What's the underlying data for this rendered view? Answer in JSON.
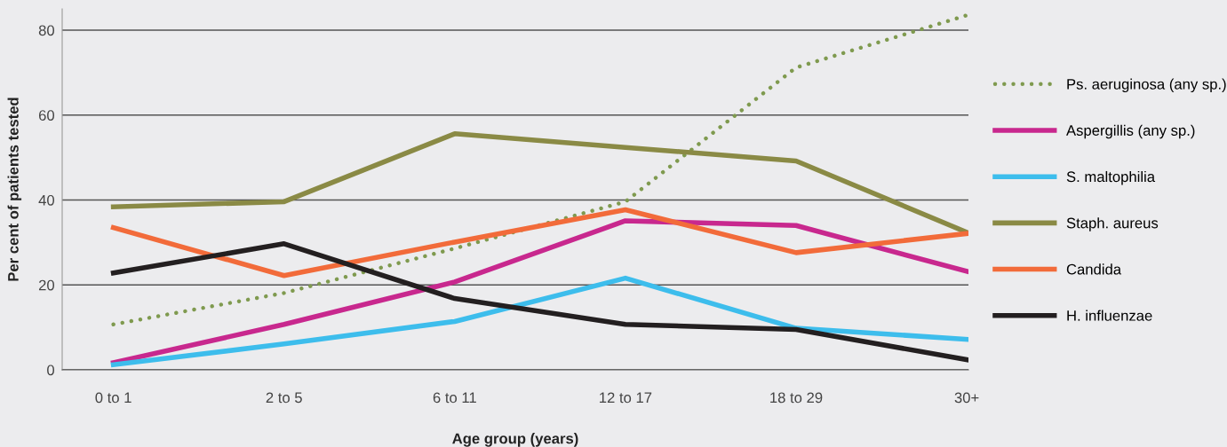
{
  "chart_data": {
    "type": "line",
    "xlabel": "Age group (years)",
    "ylabel": "Per cent of patients tested",
    "categories": [
      "0 to 1",
      "2 to 5",
      "6 to 11",
      "12 to 17",
      "18 to 29",
      "30+"
    ],
    "series": [
      {
        "name": "Ps. aeruginosa (any sp.)",
        "color": "#7f9a4f",
        "line_style": "dotted",
        "values": [
          10.7,
          18.1,
          28.6,
          39.6,
          71.2,
          83.5
        ]
      },
      {
        "name": "Aspergillis (any sp.)",
        "color": "#c8288e",
        "values": [
          1.7,
          10.7,
          20.7,
          35.1,
          34.0,
          23.2
        ]
      },
      {
        "name": "S. maltophilia",
        "color": "#3dbdec",
        "values": [
          1.2,
          6.1,
          11.4,
          21.6,
          9.8,
          7.2
        ]
      },
      {
        "name": "Staph. aureus",
        "color": "#8a8a45",
        "values": [
          38.4,
          39.6,
          55.6,
          52.4,
          49.2,
          32.4
        ]
      },
      {
        "name": "Candida",
        "color": "#f26b3a",
        "values": [
          33.5,
          22.2,
          30.1,
          37.7,
          27.6,
          32.1
        ]
      },
      {
        "name": "H. influenzae",
        "color": "#231f20",
        "values": [
          22.8,
          29.7,
          16.8,
          10.7,
          9.5,
          2.4
        ]
      }
    ],
    "ylim": [
      0,
      85
    ],
    "yticks": [
      0,
      20,
      40,
      60,
      80
    ],
    "grid": "y",
    "legend": "right",
    "marker": "none"
  }
}
